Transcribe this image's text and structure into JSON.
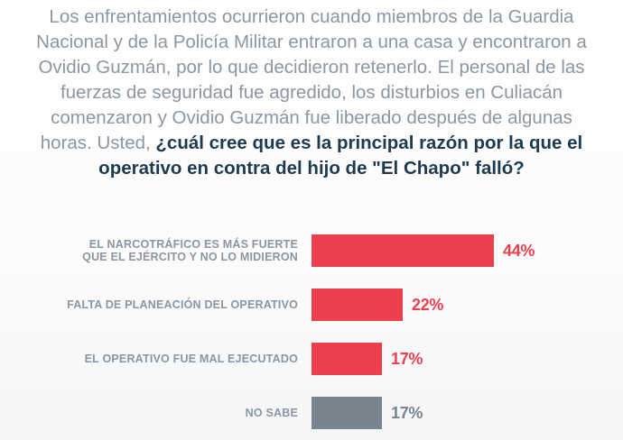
{
  "intro": {
    "lines": [
      "Los enfrentamientos ocurrieron cuando miembros de la Guardia",
      "Nacional y de la Policía Militar entraron a una casa y encontraron a",
      "Ovidio Guzmán, por lo que decidieron retenerlo. El personal de las",
      "fuerzas de seguridad fue agredido, los disturbios en Culiacán",
      "comenzaron y Ovidio Guzmán fue liberado después de algunas"
    ],
    "line6_normal": "horas. Usted, ",
    "line6_bold": "¿cuál cree que es la principal razón por la que el",
    "line7_bold": "operativo en contra del hijo de \"El Chapo\" falló?"
  },
  "chart_data": {
    "type": "bar",
    "orientation": "horizontal",
    "title": "¿Cuál cree que es la principal razón por la que el operativo en contra del hijo de \"El Chapo\" falló?",
    "xlabel": "",
    "ylabel": "",
    "xlim": [
      0,
      100
    ],
    "grid": false,
    "legend": "none",
    "unit": "%",
    "categories": [
      "EL NARCOTRÁFICO ES MÁS FUERTE QUE EL EJÉRCITO Y NO LO MIDIERON",
      "FALTA DE PLANEACIÓN DEL OPERATIVO",
      "EL OPERATIVO FUE MAL EJECUTADO",
      "NO SABE"
    ],
    "values": [
      44,
      22,
      17,
      17
    ],
    "colors": {
      "primary": "#ee3f4e",
      "neutral": "#78848e",
      "label_gray": "#8b96a1",
      "text_gray": "#8c97a1",
      "text_navy": "#1e3a4f"
    },
    "rows": [
      {
        "label_lines": [
          "EL NARCOTRÁFICO ES MÁS FUERTE",
          "QUE EL EJÉRCITO Y NO LO MIDIERON"
        ],
        "value": 44,
        "value_label": "44%",
        "bar_color": "#ee3f4e",
        "value_color": "#ee3f4e"
      },
      {
        "label_lines": [
          "FALTA DE PLANEACIÓN DEL OPERATIVO"
        ],
        "value": 22,
        "value_label": "22%",
        "bar_color": "#ee3f4e",
        "value_color": "#ee3f4e"
      },
      {
        "label_lines": [
          "EL OPERATIVO FUE MAL EJECUTADO"
        ],
        "value": 17,
        "value_label": "17%",
        "bar_color": "#ee3f4e",
        "value_color": "#ee3f4e"
      },
      {
        "label_lines": [
          "NO SABE"
        ],
        "value": 17,
        "value_label": "17%",
        "bar_color": "#78848e",
        "value_color": "#78848e"
      }
    ]
  }
}
